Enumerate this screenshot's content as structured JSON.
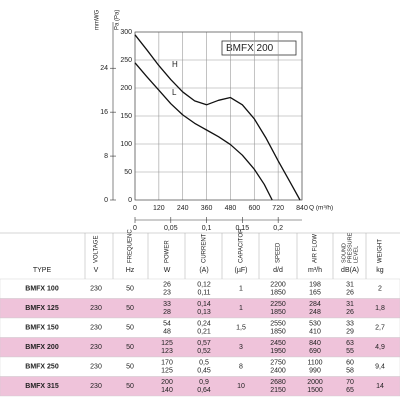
{
  "chart_data": {
    "type": "line",
    "title": "BMFX 200",
    "y_label": "Pa (Pa)",
    "y2_label": "mmWG",
    "x_label": "Q (m³/h)",
    "xlim": [
      0,
      840
    ],
    "xticks": [
      0,
      120,
      240,
      360,
      480,
      600,
      720,
      840
    ],
    "x2lim": [
      0,
      0.2333
    ],
    "x2ticks": [
      0,
      {
        "value": 0.05,
        "label": "0,05"
      },
      {
        "value": 0.1,
        "label": "0,1"
      },
      {
        "value": 0.15,
        "label": "0,15"
      },
      {
        "value": 0.2,
        "label": "0,2"
      }
    ],
    "ylim": [
      0,
      300
    ],
    "yticks": [
      0,
      50,
      100,
      150,
      200,
      250,
      300
    ],
    "y2lim": [
      0,
      30.6
    ],
    "y2ticks": [
      0,
      8,
      16,
      24
    ],
    "grid": true,
    "series": [
      {
        "name": "H",
        "color": "#111111",
        "x": [
          0,
          60,
          120,
          180,
          240,
          300,
          360,
          420,
          480,
          540,
          600,
          660,
          720,
          780,
          830
        ],
        "values": [
          295,
          268,
          240,
          215,
          193,
          177,
          170,
          178,
          183,
          170,
          145,
          110,
          70,
          32,
          0
        ]
      },
      {
        "name": "L",
        "color": "#111111",
        "x": [
          0,
          60,
          120,
          180,
          240,
          300,
          360,
          420,
          480,
          540,
          600,
          650,
          690
        ],
        "values": [
          245,
          220,
          196,
          172,
          152,
          137,
          125,
          113,
          99,
          80,
          55,
          28,
          0
        ]
      }
    ]
  },
  "table": {
    "columns": [
      {
        "label": "TYPE"
      },
      {
        "label": "VOLTAGE",
        "unit": "V"
      },
      {
        "label": "FREQUENC",
        "unit": "Hz"
      },
      {
        "label": "POWER",
        "unit": "W"
      },
      {
        "label": "CURRENT",
        "unit": "(A)"
      },
      {
        "label": "CAPACITOR",
        "unit": "(µF)"
      },
      {
        "label": "SPEED",
        "unit": "d/d"
      },
      {
        "label": "AIR FLOW",
        "unit": "m³/h"
      },
      {
        "label": "SOUND PRESSURE LEVEL",
        "unit": "dB(A)"
      },
      {
        "label": "WEIGHT",
        "unit": "kg"
      }
    ],
    "rows": [
      [
        [
          "BMFX 100"
        ],
        [
          "230"
        ],
        [
          "50"
        ],
        [
          "26",
          "23"
        ],
        [
          "0,12",
          "0,11"
        ],
        [
          "1"
        ],
        [
          "2200",
          "1850"
        ],
        [
          "198",
          "165"
        ],
        [
          "31",
          "26"
        ],
        [
          "2"
        ]
      ],
      [
        [
          "BMFX 125"
        ],
        [
          "230"
        ],
        [
          "50"
        ],
        [
          "33",
          "28"
        ],
        [
          "0,14",
          "0,13"
        ],
        [
          "1"
        ],
        [
          "2250",
          "1850"
        ],
        [
          "284",
          "248"
        ],
        [
          "31",
          "26"
        ],
        [
          "1,8"
        ]
      ],
      [
        [
          "BMFX 150"
        ],
        [
          "230"
        ],
        [
          "50"
        ],
        [
          "54",
          "48"
        ],
        [
          "0,24",
          "0,21"
        ],
        [
          "1,5"
        ],
        [
          "2550",
          "1850"
        ],
        [
          "530",
          "410"
        ],
        [
          "33",
          "29"
        ],
        [
          "2,7"
        ]
      ],
      [
        [
          "BMFX 200"
        ],
        [
          "230"
        ],
        [
          "50"
        ],
        [
          "125",
          "123"
        ],
        [
          "0,57",
          "0,52"
        ],
        [
          "3"
        ],
        [
          "2450",
          "1950"
        ],
        [
          "840",
          "690"
        ],
        [
          "63",
          "55"
        ],
        [
          "4,9"
        ]
      ],
      [
        [
          "BMFX 250"
        ],
        [
          "230"
        ],
        [
          "50"
        ],
        [
          "170",
          "125"
        ],
        [
          "0,5",
          "0,45"
        ],
        [
          "8"
        ],
        [
          "2750",
          "2400"
        ],
        [
          "1100",
          "990"
        ],
        [
          "60",
          "58"
        ],
        [
          "9,4"
        ]
      ],
      [
        [
          "BMFX 315"
        ],
        [
          "230"
        ],
        [
          "50"
        ],
        [
          "200",
          "140"
        ],
        [
          "0,9",
          "0,64"
        ],
        [
          "10"
        ],
        [
          "2680",
          "2150"
        ],
        [
          "2000",
          "1500"
        ],
        [
          "70",
          "65"
        ],
        [
          "14"
        ]
      ]
    ]
  }
}
